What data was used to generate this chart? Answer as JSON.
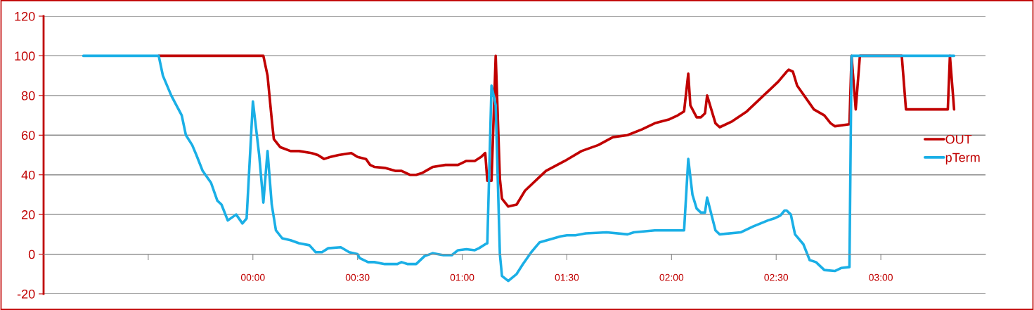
{
  "chart_data": {
    "type": "line",
    "xlim": [
      -1,
      3.5
    ],
    "xticks": [
      {
        "value": -0.5,
        "label": null
      },
      {
        "value": 0,
        "label": "00:00"
      },
      {
        "value": 0.5,
        "label": "00:30"
      },
      {
        "value": 1,
        "label": "01:00"
      },
      {
        "value": 1.5,
        "label": "01:30"
      },
      {
        "value": 2,
        "label": "02:00"
      },
      {
        "value": 2.5,
        "label": "02:30"
      },
      {
        "value": 3,
        "label": "03:00"
      }
    ],
    "ylim": [
      -20,
      120
    ],
    "yticks": [
      -20,
      0,
      20,
      40,
      60,
      80,
      100,
      120
    ],
    "grid": "y",
    "legend": "right",
    "marker": "none",
    "line_style": "solid",
    "series": [
      {
        "name": "OUT",
        "color": "#c00000",
        "x": [
          -0.45,
          0.05,
          0.07,
          0.09,
          0.1,
          0.13,
          0.18,
          0.22,
          0.28,
          0.31,
          0.34,
          0.37,
          0.41,
          0.47,
          0.5,
          0.54,
          0.56,
          0.58,
          0.63,
          0.68,
          0.71,
          0.75,
          0.78,
          0.81,
          0.86,
          0.92,
          0.98,
          1.02,
          1.06,
          1.09,
          1.11,
          1.12,
          1.14,
          1.16,
          1.18,
          1.19,
          1.22,
          1.26,
          1.3,
          1.36,
          1.4,
          1.49,
          1.57,
          1.65,
          1.72,
          1.79,
          1.86,
          1.92,
          1.99,
          2.03,
          2.06,
          2.08,
          2.09,
          2.12,
          2.14,
          2.16,
          2.17,
          2.21,
          2.23,
          2.29,
          2.36,
          2.43,
          2.48,
          2.51,
          2.55,
          2.56,
          2.58,
          2.6,
          2.66,
          2.68,
          2.73,
          2.76,
          2.78,
          2.85,
          2.86,
          2.88,
          2.9,
          3.1,
          3.12,
          3.32,
          3.33,
          3.35
        ],
        "values": [
          100,
          100,
          90,
          68,
          58,
          54,
          52,
          52,
          51,
          50,
          48,
          49,
          50,
          51,
          49,
          48,
          45,
          44,
          43.5,
          42,
          42,
          40,
          40,
          41,
          44,
          45,
          45,
          47,
          47,
          49,
          51,
          37,
          37,
          100,
          38,
          28,
          24,
          25,
          32,
          38,
          42,
          47,
          52,
          55,
          59,
          60,
          63,
          66,
          68,
          70,
          72,
          91,
          75,
          69,
          69,
          71,
          80,
          66,
          64,
          67,
          72,
          79,
          84,
          87,
          92,
          93,
          92,
          85,
          76,
          73,
          70,
          66,
          64.5,
          65.5,
          100,
          73,
          100,
          100,
          73,
          73,
          100,
          73
        ]
      },
      {
        "name": "pTerm",
        "color": "#1aafe6",
        "x": [
          -0.81,
          -0.45,
          -0.43,
          -0.39,
          -0.34,
          -0.32,
          -0.29,
          -0.27,
          -0.24,
          -0.2,
          -0.17,
          -0.15,
          -0.12,
          -0.08,
          -0.05,
          -0.03,
          0.0,
          0.03,
          0.05,
          0.07,
          0.09,
          0.11,
          0.14,
          0.18,
          0.22,
          0.27,
          0.3,
          0.33,
          0.36,
          0.42,
          0.46,
          0.5,
          0.51,
          0.55,
          0.58,
          0.63,
          0.69,
          0.71,
          0.74,
          0.78,
          0.82,
          0.86,
          0.91,
          0.95,
          0.98,
          1.02,
          1.06,
          1.08,
          1.11,
          1.12,
          1.14,
          1.16,
          1.18,
          1.19,
          1.22,
          1.26,
          1.29,
          1.33,
          1.37,
          1.42,
          1.47,
          1.5,
          1.54,
          1.59,
          1.69,
          1.79,
          1.82,
          1.92,
          2.02,
          2.06,
          2.08,
          2.1,
          2.12,
          2.14,
          2.16,
          2.17,
          2.21,
          2.23,
          2.33,
          2.39,
          2.46,
          2.49,
          2.52,
          2.54,
          2.55,
          2.57,
          2.59,
          2.63,
          2.66,
          2.69,
          2.73,
          2.78,
          2.81,
          2.85,
          2.86,
          3.35
        ],
        "values": [
          100,
          100,
          90,
          80,
          70,
          60,
          55,
          50,
          42,
          36,
          27,
          25,
          17,
          20,
          15.5,
          18,
          77,
          50,
          26,
          52,
          25,
          12,
          8,
          7,
          5.5,
          4.5,
          1,
          1,
          3,
          3.5,
          1,
          0,
          -2,
          -4,
          -4,
          -5,
          -5,
          -4,
          -5,
          -5,
          -1,
          0.5,
          -0.5,
          -0.5,
          2,
          2.5,
          2,
          3,
          5,
          5.5,
          85,
          75,
          0,
          -11,
          -13.5,
          -10,
          -5,
          1,
          6,
          7.5,
          9,
          9.5,
          9.5,
          10.5,
          11,
          10,
          11,
          12,
          12,
          12,
          48,
          30,
          23,
          21,
          21,
          28.5,
          12,
          10,
          11,
          14,
          17,
          18,
          19.5,
          22,
          22,
          20,
          10,
          5,
          -3,
          -4,
          -8,
          -8.5,
          -7,
          -6.5,
          100,
          100
        ]
      }
    ]
  }
}
